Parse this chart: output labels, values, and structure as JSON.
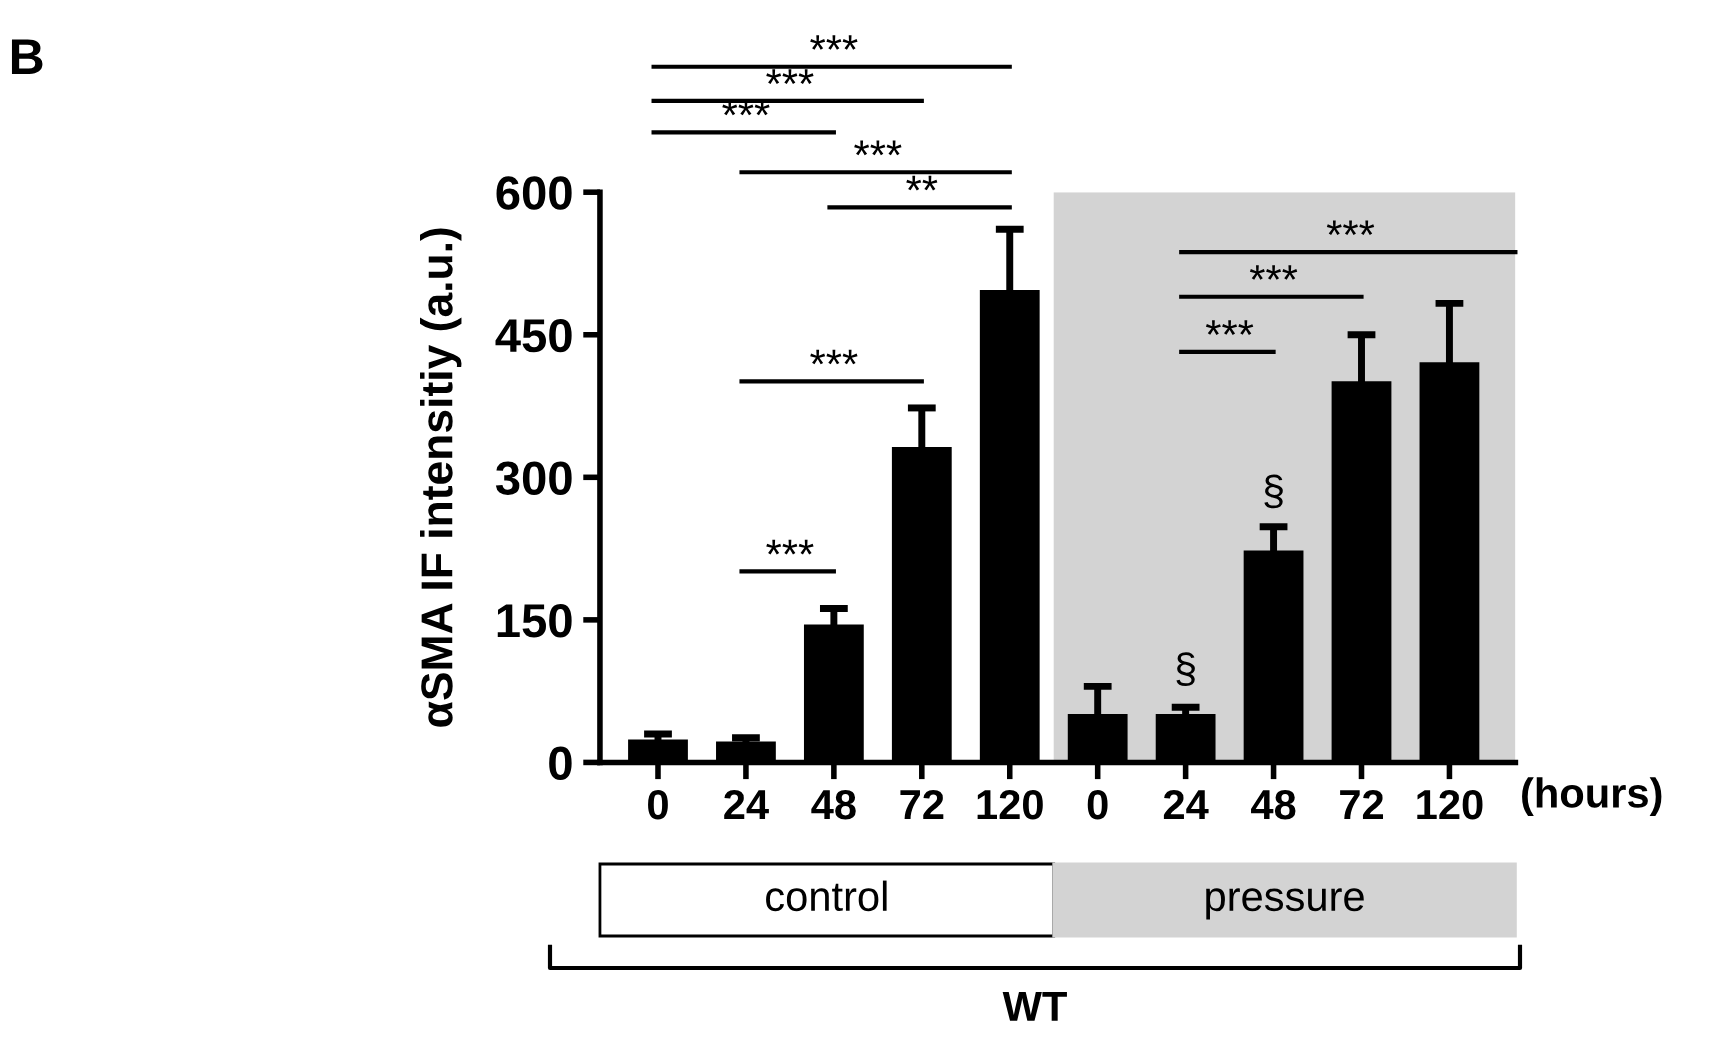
{
  "chart_data": {
    "type": "bar",
    "categories": [
      "0",
      "24",
      "48",
      "72",
      "120",
      "0",
      "24",
      "48",
      "72",
      "120"
    ],
    "values": [
      24,
      22,
      145,
      332,
      497,
      51,
      51,
      223,
      401,
      421
    ],
    "errors": [
      6,
      4,
      17,
      41,
      64,
      29,
      7,
      25,
      49,
      62
    ],
    "color": "#000000",
    "ylabel": "αSMA IF intensitiy (a.u.)",
    "xlabel": "(hours)",
    "ylim": [
      0,
      600
    ],
    "yticks": [
      0,
      150,
      300,
      450,
      600
    ],
    "annotations": [
      "B",
      "***",
      "***",
      "***",
      "***",
      "**",
      "***",
      "***",
      "***",
      "***",
      "***",
      "§",
      "§",
      "control",
      "pressure",
      "WT"
    ],
    "grid": false,
    "legend": false
  }
}
